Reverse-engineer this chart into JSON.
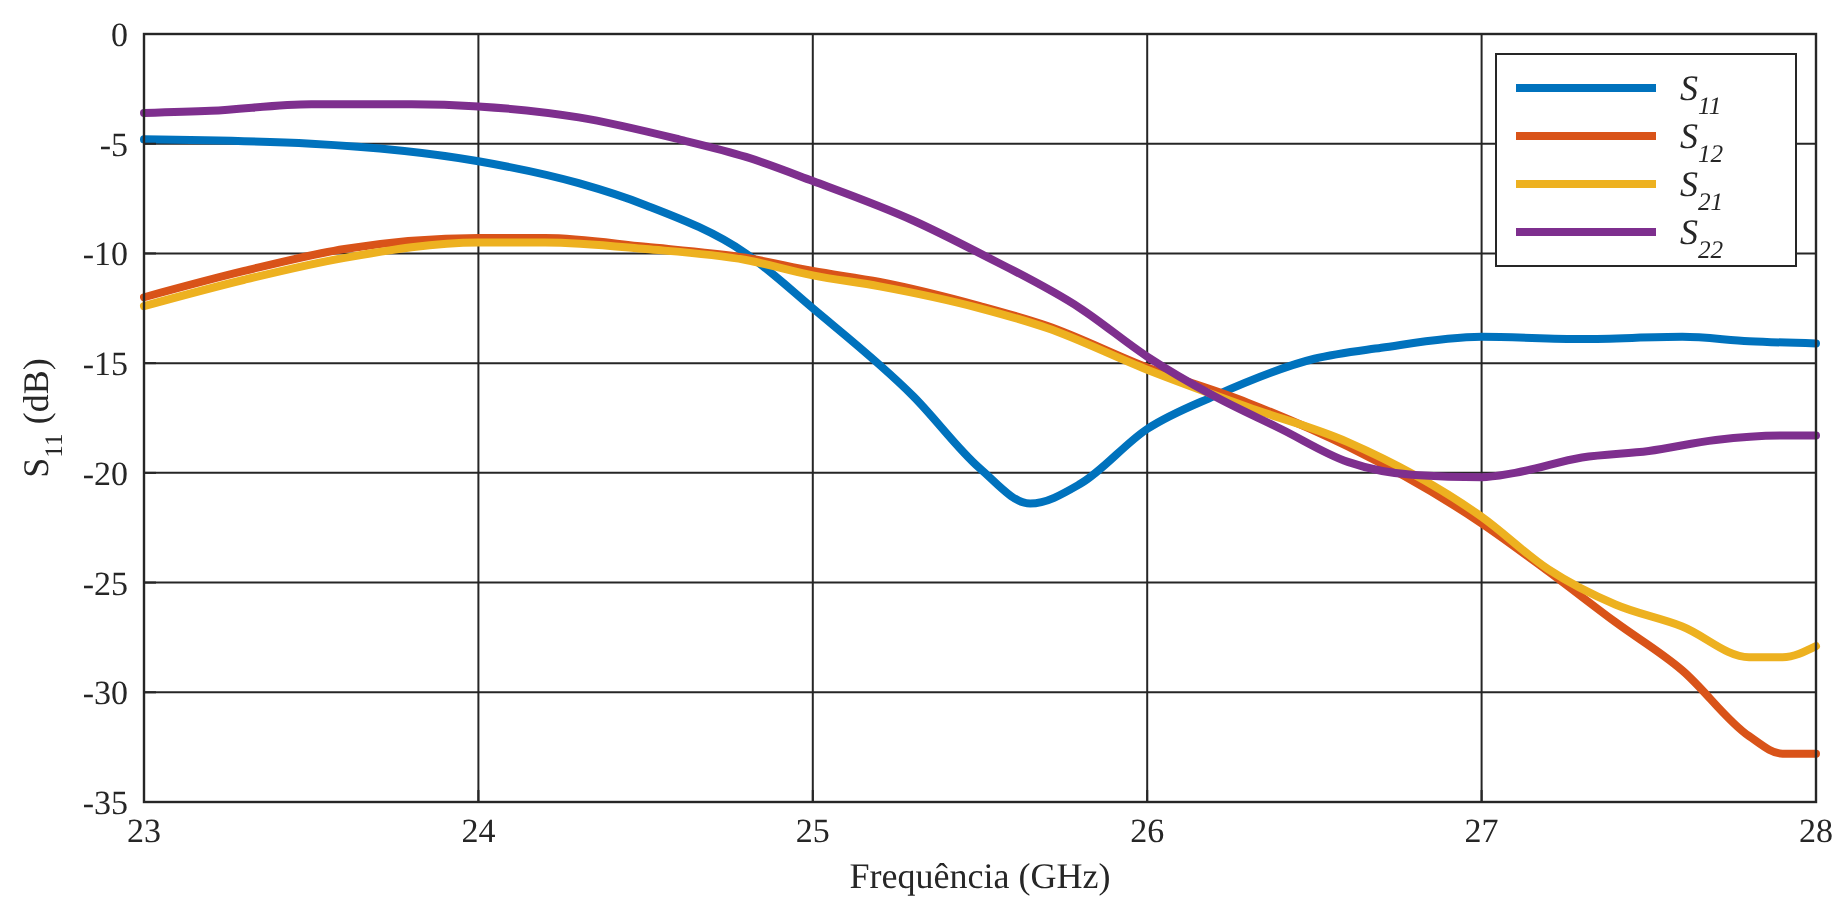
{
  "chart_data": {
    "type": "line",
    "xlabel": "Frequência (GHz)",
    "ylabel": "S$_{11}$ (dB)",
    "xlim": [
      23,
      28
    ],
    "ylim": [
      -35,
      0
    ],
    "xticks": [
      23,
      24,
      25,
      26,
      27,
      28
    ],
    "yticks": [
      -35,
      -30,
      -25,
      -20,
      -15,
      -10,
      -5,
      0
    ],
    "grid": true,
    "legend": "top right",
    "line_style": "solid",
    "series": [
      {
        "name": "S$_{11}$",
        "color": "#0072bd",
        "x": [
          23,
          23.5,
          24,
          24.3,
          24.5,
          24.8,
          25,
          25.3,
          25.5,
          25.65,
          25.8,
          26,
          26.2,
          26.5,
          26.7,
          27,
          27.3,
          27.6,
          27.8,
          28
        ],
        "values": [
          -4.8,
          -5.0,
          -5.8,
          -6.8,
          -7.8,
          -10,
          -12.5,
          -16.5,
          -19.8,
          -21.4,
          -20.5,
          -18,
          -16.5,
          -14.8,
          -14.3,
          -13.8,
          -13.9,
          -13.8,
          -14.0,
          -14.1
        ]
      },
      {
        "name": "S$_{12}$",
        "color": "#d95319",
        "x": [
          23,
          23.3,
          23.6,
          24,
          24.2,
          24.5,
          24.8,
          25,
          25.2,
          25.5,
          25.7,
          26,
          26.3,
          26.6,
          27,
          27.2,
          27.4,
          27.6,
          27.8,
          27.9,
          28
        ],
        "values": [
          -12,
          -10.8,
          -9.8,
          -9.3,
          -9.3,
          -9.7,
          -10.2,
          -10.8,
          -11.3,
          -12.4,
          -13.3,
          -15.2,
          -16.8,
          -18.8,
          -22.3,
          -24.5,
          -26.8,
          -29,
          -32,
          -32.8,
          -32.8
        ]
      },
      {
        "name": "S$_{21}$",
        "color": "#edb120",
        "x": [
          23,
          23.3,
          23.6,
          24,
          24.2,
          24.5,
          24.8,
          25,
          25.2,
          25.5,
          25.7,
          26,
          26.3,
          26.6,
          27,
          27.2,
          27.4,
          27.6,
          27.8,
          27.9,
          28
        ],
        "values": [
          -12.4,
          -11.2,
          -10.2,
          -9.5,
          -9.5,
          -9.8,
          -10.3,
          -11,
          -11.5,
          -12.5,
          -13.4,
          -15.3,
          -17,
          -18.6,
          -22,
          -24.4,
          -26,
          -27,
          -28.4,
          -28.4,
          -27.9
        ]
      },
      {
        "name": "S$_{22}$",
        "color": "#7e2f8e",
        "x": [
          23,
          23.2,
          23.5,
          23.8,
          24,
          24.3,
          24.6,
          24.8,
          25,
          25.3,
          25.5,
          25.8,
          26,
          26.2,
          26.4,
          26.6,
          26.8,
          27,
          27.1,
          27.3,
          27.5,
          27.7,
          27.9,
          28
        ],
        "values": [
          -3.6,
          -3.5,
          -3.2,
          -3.2,
          -3.3,
          -3.8,
          -4.8,
          -5.6,
          -6.7,
          -8.5,
          -10,
          -12.5,
          -14.7,
          -16.5,
          -18,
          -19.5,
          -20.1,
          -20.2,
          -20,
          -19.3,
          -19,
          -18.5,
          -18.3,
          -18.3
        ]
      }
    ]
  }
}
